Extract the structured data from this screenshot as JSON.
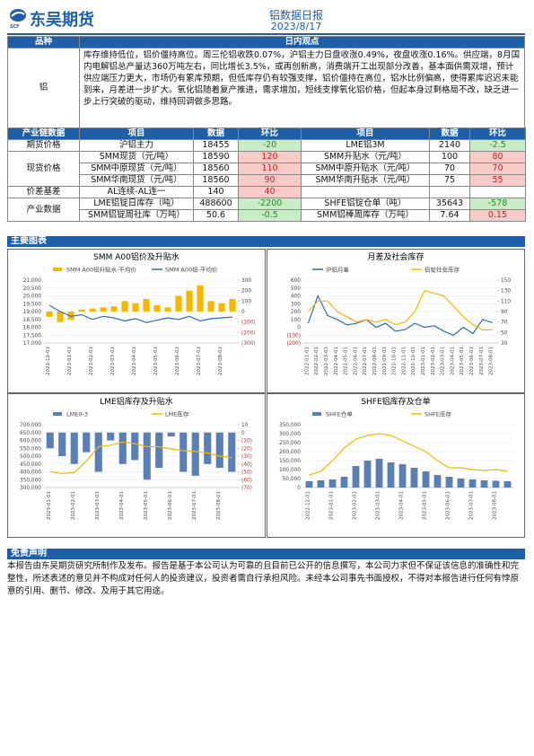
{
  "header": {
    "logo": "东吴期货",
    "logo_sub": "SCF",
    "title": "铝数据日报",
    "date": "2023/8/17"
  },
  "view": {
    "headers": [
      "品种",
      "日内观点"
    ],
    "name": "铝",
    "text": "库存维持低位，铝价僵持高位。周三伦铝收跌0.07%，沪铝主力日盘收涨0.49%，夜盘收涨0.16%。供应端，8月国内电解铝总产量达360万吨左右，同比增长3.5%，或再创新高，消费端开工出现部分改善，基本面供需双增，预计供应端压力更大，市场仍有累库预期，但低库存仍有较强支撑，铝价僵持在高位，铝水比例偏高，使得累库迟迟未能到来，月差进一步扩大。氧化铝随着复产推进，需求增加，短线支撑氧化铝价格，但起本身过剩格局不改，缺乏进一步上行突破的驱动，维持回调做多思路。"
  },
  "table": {
    "headers": [
      "产业链数据",
      "项目",
      "数据",
      "环比",
      "项目",
      "数据",
      "环比"
    ],
    "groups": [
      {
        "name": "期货价格",
        "rows": [
          [
            "沪铝主力",
            18455,
            -20,
            "LME铝3M",
            2140,
            -2.5
          ]
        ]
      },
      {
        "name": "现货价格",
        "rows": [
          [
            "SMM现货（元/吨）",
            18590,
            120,
            "SMM升贴水（元/吨）",
            100,
            80
          ],
          [
            "SMM中原现货（元/吨）",
            18560,
            110,
            "SMM中原升贴水（元/吨）",
            70,
            70
          ],
          [
            "SMM华南现货（元/吨）",
            18560,
            90,
            "SMM华南升贴水（元/吨）",
            75,
            55
          ]
        ]
      },
      {
        "name": "价差基差",
        "rows": [
          [
            "AL连续-AL连一",
            140,
            40
          ]
        ]
      },
      {
        "name": "产业数据",
        "rows": [
          [
            "LME铝锭日库存（吨）",
            488600,
            -2200,
            "SHFE铝锭仓单（吨）",
            35643,
            -578
          ],
          [
            "SMM铝锭周社库（万吨）",
            50.6,
            -0.5,
            "SMM铝棒周库存（万吨）",
            7.64,
            0.15
          ]
        ]
      }
    ]
  },
  "charts_title": "主要图表",
  "chart_data": [
    {
      "type": "bar-line",
      "title": "SMM A00铝价及升贴水",
      "categories": [
        "2022-12-01",
        null,
        "2023-01-01",
        null,
        "2023-02-01",
        null,
        "2023-03-01",
        null,
        "2023-04-01",
        null,
        "2023-05-01",
        null,
        "2023-06-01",
        null,
        "2023-07-01",
        null,
        "2023-08-01",
        null
      ],
      "series": [
        {
          "name": "SMM A00铝升贴水-平均价",
          "type": "bar",
          "axis": "y2",
          "color": "#f5b800",
          "values": [
            -50,
            -100,
            -80,
            20,
            30,
            40,
            50,
            100,
            80,
            120,
            60,
            40,
            150,
            200,
            250,
            100,
            80,
            120
          ]
        },
        {
          "name": "SMM A00铝-平均价",
          "type": "line",
          "color": "#2e6db4",
          "values": [
            19400,
            19000,
            18700,
            18800,
            18500,
            18700,
            18600,
            18400,
            18550,
            18300,
            18450,
            18600,
            18500,
            18700,
            18400,
            18550,
            18600,
            18650
          ]
        }
      ],
      "ylim": [
        17000,
        21000
      ],
      "yticks": [
        {
          "value": 17000,
          "label": "17,000"
        },
        {
          "value": 17500,
          "label": "17,500"
        },
        {
          "value": 18000,
          "label": "18,000"
        },
        {
          "value": 18500,
          "label": "18,500"
        },
        {
          "value": 19000,
          "label": "19,000"
        },
        {
          "value": 19500,
          "label": "19,500"
        },
        {
          "value": 20000,
          "label": "20,000"
        },
        {
          "value": 20500,
          "label": "20,500"
        },
        {
          "value": 21000,
          "label": "21,000"
        }
      ],
      "y2lim": [
        -300,
        300
      ],
      "y2ticks": [
        {
          "value": -300,
          "label": "(300)"
        },
        {
          "value": -200,
          "label": "(200)"
        },
        {
          "value": -100,
          "label": "(100)"
        },
        0,
        100,
        200,
        300
      ]
    },
    {
      "type": "line",
      "title": "月差及社会库存",
      "categories": [
        "2022-01-01",
        "2022-02-01",
        "2022-03-01",
        "2022-04-01",
        "2022-05-01",
        "2022-06-01",
        "2022-07-01",
        "2022-08-01",
        "2022-09-01",
        "2022-10-01",
        "2022-11-01",
        "2022-12-01",
        "2023-01-01",
        "2023-02-01",
        "2023-03-01",
        "2023-04-01",
        "2023-05-01",
        "2023-06-01",
        "2023-07-01",
        "2023-08-01"
      ],
      "series": [
        {
          "name": "沪铝月差",
          "type": "line",
          "color": "#2e6db4",
          "values": [
            50,
            400,
            150,
            100,
            30,
            50,
            100,
            0,
            50,
            -50,
            -30,
            50,
            0,
            20,
            -50,
            -100,
            0,
            -80,
            100,
            60
          ]
        },
        {
          "name": "铝锭社会库存",
          "type": "line",
          "axis": "y2",
          "color": "#f5b800",
          "values": [
            90,
            110,
            110,
            90,
            80,
            70,
            75,
            70,
            75,
            65,
            70,
            90,
            130,
            125,
            120,
            100,
            80,
            65,
            55,
            55
          ]
        }
      ],
      "ylim": [
        -200,
        600
      ],
      "yticks": [
        {
          "value": -200,
          "label": "(200)"
        },
        {
          "value": -100,
          "label": "(100)"
        },
        0,
        100,
        200,
        300,
        400,
        500,
        600
      ],
      "y2lim": [
        30,
        150
      ],
      "y2ticks": [
        30,
        50,
        70,
        90,
        110,
        130,
        150
      ]
    },
    {
      "type": "bar-line",
      "title": "LME铝库存及升贴水",
      "categories": [
        "2023-01-01",
        null,
        "2023-02-01",
        null,
        "2023-03-01",
        null,
        "2023-04-01",
        null,
        "2023-05-01",
        null,
        "2023-06-01",
        null,
        "2023-07-01",
        null,
        "2023-08-01",
        null
      ],
      "series": [
        {
          "name": "LME0-3",
          "type": "bar",
          "axis": "y2",
          "color": "#5a7fb5",
          "values": [
            -20,
            -30,
            -40,
            -25,
            -50,
            -10,
            -40,
            -35,
            -60,
            -45,
            -5,
            -50,
            -55,
            -40,
            -45,
            -50
          ]
        },
        {
          "name": "LME库存",
          "type": "line",
          "color": "#f5b800",
          "values": [
            400000,
            390000,
            395000,
            470000,
            560000,
            570000,
            590000,
            580000,
            560000,
            560000,
            545000,
            535000,
            530000,
            520000,
            500000,
            490000
          ]
        }
      ],
      "ylim": [
        300000,
        700000
      ],
      "yticks": [
        {
          "value": 300000,
          "label": "300,000"
        },
        {
          "value": 350000,
          "label": "350,000"
        },
        {
          "value": 400000,
          "label": "400,000"
        },
        {
          "value": 450000,
          "label": "450,000"
        },
        {
          "value": 500000,
          "label": "500,000"
        },
        {
          "value": 550000,
          "label": "550,000"
        },
        {
          "value": 600000,
          "label": "600,000"
        },
        {
          "value": 650000,
          "label": "650,000"
        },
        {
          "value": 700000,
          "label": "700,000"
        }
      ],
      "y2lim": [
        -70,
        10
      ],
      "y2ticks": [
        {
          "value": -70,
          "label": "(70)"
        },
        {
          "value": -60,
          "label": "(60)"
        },
        {
          "value": -50,
          "label": "(50)"
        },
        {
          "value": -40,
          "label": "(40)"
        },
        {
          "value": -30,
          "label": "(30)"
        },
        {
          "value": -20,
          "label": "(20)"
        },
        {
          "value": -10,
          "label": "(10)"
        },
        0,
        10
      ]
    },
    {
      "type": "bar-line",
      "title": "SHFE铝库存及仓单",
      "categories": [
        "2022-12-01",
        null,
        "2023-01-01",
        null,
        "2023-02-01",
        null,
        "2023-03-01",
        null,
        "2023-04-01",
        null,
        "2023-05-01",
        null,
        "2023-06-01",
        null,
        "2023-07-01",
        null,
        "2023-08-01",
        null
      ],
      "series": [
        {
          "name": "SHFE仓单",
          "type": "bar",
          "color": "#5a7fb5",
          "values": [
            35000,
            40000,
            45000,
            60000,
            120000,
            150000,
            160000,
            140000,
            130000,
            110000,
            90000,
            70000,
            60000,
            50000,
            45000,
            40000,
            38000,
            35643
          ]
        },
        {
          "name": "SHFE库存",
          "type": "line",
          "color": "#f5b800",
          "values": [
            70000,
            90000,
            150000,
            220000,
            270000,
            290000,
            300000,
            290000,
            260000,
            230000,
            200000,
            150000,
            110000,
            110000,
            100000,
            95000,
            100000,
            90000
          ]
        }
      ],
      "ylim": [
        0,
        350000
      ],
      "yticks": [
        0,
        {
          "value": 50000,
          "label": "50,000"
        },
        {
          "value": 100000,
          "label": "100,000"
        },
        {
          "value": 150000,
          "label": "150,000"
        },
        {
          "value": 200000,
          "label": "200,000"
        },
        {
          "value": 250000,
          "label": "250,000"
        },
        {
          "value": 300000,
          "label": "300,000"
        },
        {
          "value": 350000,
          "label": "350,000"
        }
      ]
    }
  ],
  "disclaimer": {
    "title": "免责声明",
    "text": "本报告由东吴期货研究所制作及发布。报告是基于本公司认为可靠的且目前已公开的信息撰写，本公司力求但不保证该信息的准确性和完整性，所述表述的意见并不构成对任何人的投资建议，投资者需自行承担风险。未经本公司事先书面授权，不得对本报告进行任何有悖原意的引用、删节、修改、及用于其它用途。"
  }
}
